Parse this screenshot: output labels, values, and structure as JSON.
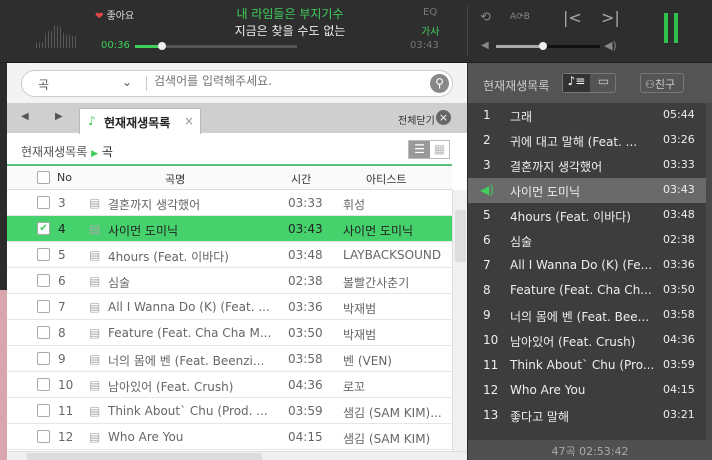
{
  "player": {
    "like_label": "좋아요",
    "lyric_current": "내 라임들은 부지기수",
    "lyric_next": "지금은 찾을 수도 없는",
    "elapsed": "00:36",
    "duration": "03:43",
    "progress": 0.165,
    "volume": 0.45,
    "eq_label": "EQ",
    "lyrics_label": "가사",
    "accent": "#3fcf5a"
  },
  "search": {
    "category": "곡",
    "placeholder": "검색어를 입력해주세요."
  },
  "tabs": {
    "active": "현재재생목록",
    "close_all": "전체닫기"
  },
  "breadcrumb": {
    "root": "현재재생목록",
    "current": "곡"
  },
  "table": {
    "headers": [
      "No",
      "곡명",
      "시간",
      "아티스트"
    ],
    "rows": [
      {
        "no": "3",
        "title": "결혼까지 생각했어",
        "time": "03:33",
        "artist": "휘성",
        "checked": false
      },
      {
        "no": "4",
        "title": "사이먼 도미닉",
        "time": "03:43",
        "artist": "사이먼 도미닉",
        "checked": true
      },
      {
        "no": "5",
        "title": "4hours (Feat. 이바다)",
        "time": "03:48",
        "artist": "LAYBACKSOUND",
        "checked": false
      },
      {
        "no": "6",
        "title": "심술",
        "time": "02:38",
        "artist": "볼빨간사춘기",
        "checked": false
      },
      {
        "no": "7",
        "title": "All I Wanna Do (K) (Feat. ...",
        "time": "03:36",
        "artist": "박재범",
        "checked": false
      },
      {
        "no": "8",
        "title": "Feature (Feat. Cha Cha M...",
        "time": "03:50",
        "artist": "박재범",
        "checked": false
      },
      {
        "no": "9",
        "title": "너의 몸에 벤 (Feat. Beenzi...",
        "time": "03:58",
        "artist": "벤 (VEN)",
        "checked": false
      },
      {
        "no": "10",
        "title": "남아있어 (Feat. Crush)",
        "time": "04:36",
        "artist": "로꼬",
        "checked": false
      },
      {
        "no": "11",
        "title": "Think About` Chu (Prod. ...",
        "time": "03:59",
        "artist": "샘김 (SAM KIM)...",
        "checked": false
      },
      {
        "no": "12",
        "title": "Who Are You",
        "time": "04:15",
        "artist": "샘김 (SAM KIM)",
        "checked": false
      }
    ]
  },
  "playlist": {
    "title": "현재재생목록",
    "friend_label": "친구",
    "summary": "47곡 02:53:42",
    "items": [
      {
        "no": "1",
        "title": "그래",
        "time": "05:44"
      },
      {
        "no": "2",
        "title": "귀에 대고 말해 (Feat. ...",
        "time": "03:26"
      },
      {
        "no": "3",
        "title": "결혼까지 생각했어",
        "time": "03:33"
      },
      {
        "no": "4",
        "title": "사이먼 도미닉",
        "time": "03:43",
        "playing": true
      },
      {
        "no": "5",
        "title": "4hours (Feat. 이바다)",
        "time": "03:48"
      },
      {
        "no": "6",
        "title": "심술",
        "time": "02:38"
      },
      {
        "no": "7",
        "title": "All I Wanna Do (K) (Fe...",
        "time": "03:36"
      },
      {
        "no": "8",
        "title": "Feature (Feat. Cha Ch...",
        "time": "03:50"
      },
      {
        "no": "9",
        "title": "너의 몸에 벤 (Feat. Bee...",
        "time": "03:58"
      },
      {
        "no": "10",
        "title": "남아있어 (Feat. Crush)",
        "time": "04:36"
      },
      {
        "no": "11",
        "title": "Think About` Chu (Pro...",
        "time": "03:59"
      },
      {
        "no": "12",
        "title": "Who Are You",
        "time": "04:15"
      },
      {
        "no": "13",
        "title": "좋다고 말해",
        "time": "03:21"
      }
    ]
  }
}
